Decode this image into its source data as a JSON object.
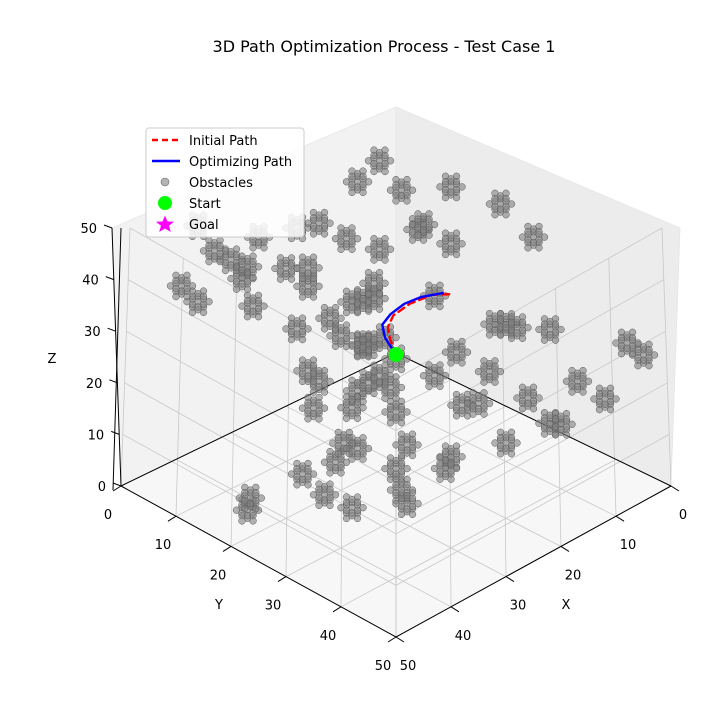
{
  "chart_data": {
    "type": "scatter",
    "title": "3D Path Optimization Process - Test Case 1",
    "xlabel": "X",
    "ylabel": "Y",
    "zlabel": "Z",
    "xlim": [
      0,
      50
    ],
    "ylim": [
      0,
      50
    ],
    "zlim": [
      0,
      50
    ],
    "x_ticks": [
      "0",
      "10",
      "20",
      "30",
      "40",
      "50"
    ],
    "y_ticks": [
      "0",
      "10",
      "20",
      "30",
      "40",
      "50"
    ],
    "z_ticks": [
      "0",
      "10",
      "20",
      "30",
      "40",
      "50"
    ],
    "grid": true,
    "legend_position": "top-left",
    "legend": [
      "Initial Path",
      "Optimizing Path",
      "Obstacles",
      "Start",
      "Goal"
    ],
    "colors": {
      "initial_path": "#ff0000",
      "optimizing_path": "#0000ff",
      "obstacles": "#808080",
      "start": "#00ff00",
      "goal": "#ff00ff"
    },
    "series": [
      {
        "name": "Initial Path",
        "style": "dashed",
        "points": [
          [
            5,
            5,
            5
          ],
          [
            6.5,
            7.5,
            10
          ],
          [
            8.5,
            10,
            15
          ],
          [
            11.5,
            12,
            20
          ],
          [
            15.5,
            13,
            25
          ],
          [
            20.5,
            14,
            30
          ],
          [
            24.5,
            14.5,
            32.5
          ]
        ]
      },
      {
        "name": "Optimizing Path",
        "style": "solid",
        "points": [
          [
            5,
            5,
            5
          ],
          [
            5.5,
            7.5,
            10
          ],
          [
            7.5,
            10,
            15
          ],
          [
            11,
            12,
            20
          ],
          [
            15,
            13.5,
            25
          ],
          [
            19,
            14.5,
            29
          ],
          [
            24,
            15.5,
            33
          ]
        ]
      },
      {
        "name": "Start",
        "points": [
          [
            5,
            5,
            5
          ]
        ]
      },
      {
        "name": "Goal",
        "points": []
      },
      {
        "name": "Obstacles",
        "clusters": [
          [
            18.5,
            45.5,
            2.6
          ],
          [
            19,
            45.5,
            5.3
          ],
          [
            20,
            37,
            6.1
          ],
          [
            24,
            37,
            4.1
          ],
          [
            28,
            36,
            3.1
          ],
          [
            25,
            36,
            10.6
          ],
          [
            16.5,
            26,
            4.6
          ],
          [
            27,
            27,
            5.6
          ],
          [
            24,
            22,
            6.1
          ],
          [
            23,
            30,
            9.1
          ],
          [
            32,
            31,
            6.1
          ],
          [
            36,
            34,
            7.1
          ],
          [
            34,
            24,
            10.1
          ],
          [
            39,
            30,
            13.6
          ],
          [
            35,
            15,
            8.6
          ],
          [
            40,
            12,
            13.6
          ],
          [
            37,
            13,
            17.6
          ],
          [
            44,
            14,
            16.6
          ],
          [
            47,
            9,
            20.6
          ],
          [
            44,
            11,
            23.6
          ],
          [
            30,
            18,
            15.1
          ],
          [
            34,
            19,
            18.1
          ],
          [
            29,
            12,
            18.1
          ],
          [
            30,
            12,
            28.1
          ],
          [
            36,
            8,
            28.1
          ],
          [
            46,
            1,
            24.6
          ],
          [
            46,
            4,
            28.6
          ],
          [
            20,
            20,
            20.1
          ],
          [
            28,
            17,
            24.1
          ],
          [
            29,
            22,
            22.6
          ],
          [
            24,
            4,
            20.6
          ],
          [
            27,
            2,
            38.6
          ],
          [
            22,
            3,
            43.1
          ],
          [
            35,
            13,
            30.6
          ],
          [
            22,
            22,
            11.6
          ],
          [
            15,
            22,
            12.1
          ],
          [
            17,
            20,
            15.1
          ],
          [
            23,
            24,
            18.1
          ],
          [
            13,
            27,
            15.6
          ],
          [
            20,
            28,
            14.6
          ],
          [
            18,
            33,
            16.1
          ],
          [
            12,
            18,
            17.6
          ],
          [
            15,
            17,
            20.1
          ],
          [
            16,
            22,
            21.6
          ],
          [
            22,
            27,
            20.1
          ],
          [
            10,
            26,
            15.6
          ],
          [
            13,
            23,
            22.6
          ],
          [
            10,
            18,
            25.1
          ],
          [
            20,
            25,
            25.6
          ],
          [
            12,
            24,
            26.1
          ],
          [
            11,
            29,
            26.1
          ],
          [
            14,
            20,
            28.6
          ],
          [
            17,
            21,
            31.1
          ],
          [
            22,
            15,
            31.1
          ],
          [
            4,
            20,
            26.1
          ],
          [
            1,
            17,
            26.6
          ],
          [
            12,
            15,
            35.1
          ],
          [
            1,
            21,
            28.6
          ],
          [
            0,
            18,
            34.6
          ],
          [
            5,
            33,
            35.1
          ],
          [
            0,
            30,
            34.6
          ],
          [
            2,
            35,
            40.1
          ],
          [
            0,
            36,
            44.6
          ],
          [
            2,
            27,
            38.6
          ],
          [
            3,
            17,
            36.6
          ],
          [
            2,
            9,
            40.1
          ],
          [
            1,
            4,
            41.1
          ],
          [
            9,
            8,
            41.6
          ],
          [
            16,
            12,
            39.6
          ],
          [
            11,
            1,
            39.6
          ],
          [
            7,
            16,
            35.1
          ],
          [
            6,
            32,
            29.6
          ],
          [
            0,
            27,
            31.6
          ],
          [
            9,
            4,
            32.6
          ],
          [
            17,
            7,
            34.6
          ],
          [
            16,
            20,
            33.1
          ],
          [
            3,
            39,
            32.6
          ],
          [
            -1,
            38,
            33.1
          ]
        ]
      }
    ]
  }
}
